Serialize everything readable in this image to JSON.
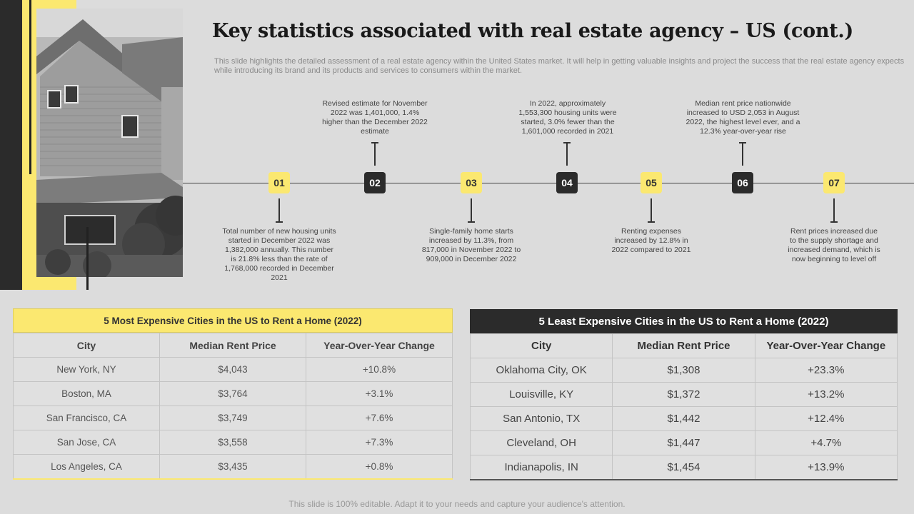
{
  "title": "Key statistics associated with real estate agency – US (cont.)",
  "subtitle": "This slide highlights the detailed assessment of a real estate agency within the United States market. It will help in getting valuable insights and project the success that the real estate agency expects while introducing its brand and its products and services to consumers within the market.",
  "timeline": {
    "markers": [
      {
        "num": "01",
        "note": "Total number of new housing units started in December 2022 was 1,382,000 annually. This number is 21.8% less than the rate of 1,768,000 recorded in December 2021"
      },
      {
        "num": "02",
        "note": "Revised estimate for November 2022 was 1,401,000, 1.4% higher than the December 2022 estimate"
      },
      {
        "num": "03",
        "note": "Single-family home starts increased by 11.3%, from 817,000 in November 2022 to 909,000 in December 2022"
      },
      {
        "num": "04",
        "note": "In 2022, approximately 1,553,300 housing units were started, 3.0% fewer than the 1,601,000 recorded in 2021"
      },
      {
        "num": "05",
        "note": "Renting expenses increased by 12.8% in 2022 compared to 2021"
      },
      {
        "num": "06",
        "note": "Median rent price nationwide increased to USD 2,053 in August 2022, the highest level ever, and a 12.3% year-over-year rise"
      },
      {
        "num": "07",
        "note": "Rent prices increased due to the supply shortage and increased demand, which is now beginning to level off"
      }
    ]
  },
  "most_expensive": {
    "caption": "5 Most Expensive Cities in the US to Rent a Home (2022)",
    "headers": [
      "City",
      "Median Rent Price",
      "Year-Over-Year Change"
    ],
    "rows": [
      [
        "New York, NY",
        "$4,043",
        "+10.8%"
      ],
      [
        "Boston, MA",
        "$3,764",
        "+3.1%"
      ],
      [
        "San Francisco, CA",
        "$3,749",
        "+7.6%"
      ],
      [
        "San Jose, CA",
        "$3,558",
        "+7.3%"
      ],
      [
        "Los Angeles, CA",
        "$3,435",
        "+0.8%"
      ]
    ]
  },
  "least_expensive": {
    "caption": "5 Least Expensive Cities in the US to Rent a Home (2022)",
    "headers": [
      "City",
      "Median Rent Price",
      "Year-Over-Year Change"
    ],
    "rows": [
      [
        "Oklahoma City, OK",
        "$1,308",
        "+23.3%"
      ],
      [
        "Louisville, KY",
        "$1,372",
        "+13.2%"
      ],
      [
        "San Antonio, TX",
        "$1,442",
        "+12.4%"
      ],
      [
        "Cleveland, OH",
        "$1,447",
        "+4.7%"
      ],
      [
        "Indianapolis, IN",
        "$1,454",
        "+13.9%"
      ]
    ]
  },
  "footer": "This slide is 100% editable. Adapt it to your needs and capture your audience's attention.",
  "colors": {
    "accent_yellow": "#fbe870",
    "dark": "#2b2b2b",
    "background": "#dcdcdc"
  }
}
